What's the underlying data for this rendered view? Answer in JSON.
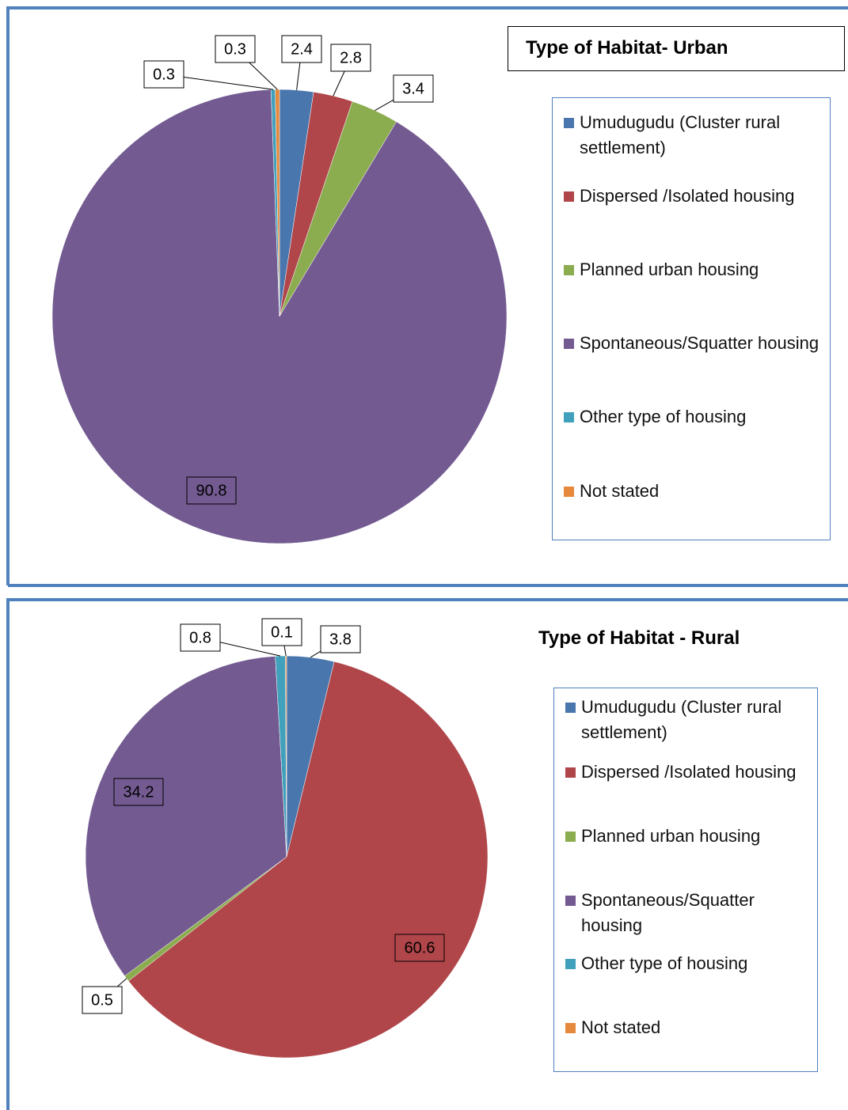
{
  "chart_data": [
    {
      "type": "pie",
      "title": "Type of Habitat- Urban",
      "categories": [
        "Umudugudu (Cluster rural settlement)",
        "Dispersed /Isolated housing",
        "Planned urban housing",
        "Spontaneous/Squatter housing",
        "Other type of housing",
        "Not stated"
      ],
      "values": [
        2.4,
        2.8,
        3.4,
        90.8,
        0.3,
        0.3
      ],
      "colors": [
        "#4a76ae",
        "#b0464a",
        "#8cac50",
        "#735a91",
        "#41a0bb",
        "#e6893c"
      ]
    },
    {
      "type": "pie",
      "title": "Type of Habitat - Rural",
      "categories": [
        "Umudugudu (Cluster rural settlement)",
        "Dispersed /Isolated housing",
        "Planned urban housing",
        "Spontaneous/Squatter housing",
        "Other type of housing",
        "Not stated"
      ],
      "values": [
        3.8,
        60.6,
        0.5,
        34.2,
        0.8,
        0.1
      ],
      "colors": [
        "#4a76ae",
        "#b0464a",
        "#8cac50",
        "#735a91",
        "#41a0bb",
        "#e6893c"
      ]
    }
  ]
}
